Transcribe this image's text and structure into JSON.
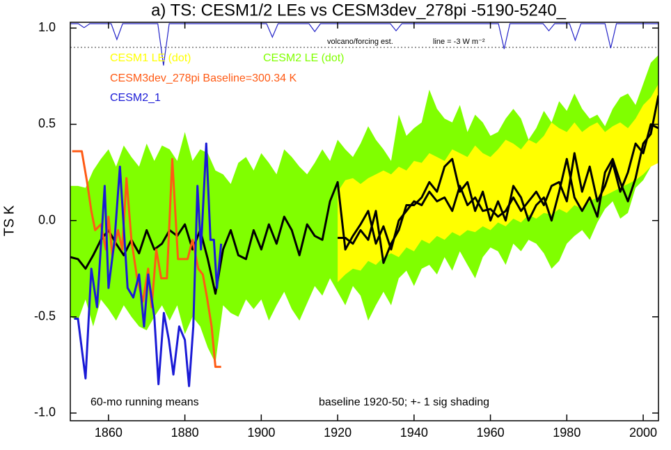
{
  "chart_data": {
    "type": "line",
    "title": "a) TS: CESM1/2 LEs vs CESM3dev_278pi -5190-5240_",
    "ylabel": "TS K",
    "xlim": [
      1850,
      2004
    ],
    "ylim": [
      -1.04,
      1.03
    ],
    "xticks": [
      1860,
      1880,
      1900,
      1920,
      1940,
      1960,
      1980,
      2000
    ],
    "yticks": [
      {
        "value": -1,
        "label": "-1.0"
      },
      -0.5,
      {
        "value": 0,
        "label": "0.0"
      },
      0.5,
      {
        "value": 1,
        "label": "1.0"
      }
    ],
    "bands": [
      {
        "name": "CESM2 LE (dot)",
        "color": "#80ff00",
        "x": [
          1850,
          1852,
          1854,
          1856,
          1858,
          1860,
          1862,
          1864,
          1866,
          1868,
          1870,
          1872,
          1874,
          1876,
          1878,
          1880,
          1882,
          1884,
          1886,
          1888,
          1890,
          1892,
          1894,
          1896,
          1898,
          1900,
          1902,
          1904,
          1906,
          1908,
          1910,
          1912,
          1914,
          1916,
          1918,
          1920,
          1922,
          1924,
          1926,
          1928,
          1930,
          1932,
          1934,
          1936,
          1938,
          1940,
          1942,
          1944,
          1946,
          1948,
          1950,
          1952,
          1954,
          1956,
          1958,
          1960,
          1962,
          1964,
          1966,
          1968,
          1970,
          1972,
          1974,
          1976,
          1978,
          1980,
          1982,
          1984,
          1986,
          1988,
          1990,
          1992,
          1994,
          1996,
          1998,
          2000,
          2002,
          2004
        ],
        "upper": [
          0.18,
          0.18,
          0.17,
          0.26,
          0.32,
          0.37,
          0.28,
          0.39,
          0.33,
          0.28,
          0.4,
          0.31,
          0.39,
          0.37,
          0.31,
          0.46,
          0.31,
          0.37,
          0.35,
          0.26,
          0.24,
          0.19,
          0.3,
          0.33,
          0.26,
          0.35,
          0.3,
          0.24,
          0.37,
          0.33,
          0.28,
          0.24,
          0.3,
          0.37,
          0.31,
          0.42,
          0.37,
          0.33,
          0.4,
          0.49,
          0.42,
          0.37,
          0.31,
          0.55,
          0.44,
          0.48,
          0.51,
          0.68,
          0.58,
          0.53,
          0.51,
          0.6,
          0.46,
          0.55,
          0.51,
          0.44,
          0.46,
          0.53,
          0.58,
          0.53,
          0.42,
          0.48,
          0.57,
          0.51,
          0.62,
          0.57,
          0.66,
          0.58,
          0.53,
          0.55,
          0.49,
          0.58,
          0.64,
          0.66,
          0.6,
          0.71,
          0.82,
          0.86
        ],
        "lower": [
          -0.5,
          -0.52,
          -0.41,
          -0.55,
          -0.41,
          -0.46,
          -0.52,
          -0.44,
          -0.5,
          -0.55,
          -0.57,
          -0.5,
          -0.44,
          -0.52,
          -0.44,
          -0.59,
          -0.5,
          -0.55,
          -0.66,
          -0.74,
          -0.44,
          -0.48,
          -0.5,
          -0.41,
          -0.46,
          -0.41,
          -0.52,
          -0.44,
          -0.37,
          -0.46,
          -0.52,
          -0.43,
          -0.34,
          -0.39,
          -0.3,
          -0.37,
          -0.44,
          -0.34,
          -0.39,
          -0.52,
          -0.44,
          -0.37,
          -0.44,
          -0.3,
          -0.26,
          -0.34,
          -0.25,
          -0.23,
          -0.28,
          -0.19,
          -0.26,
          -0.16,
          -0.23,
          -0.3,
          -0.19,
          -0.14,
          -0.16,
          -0.23,
          -0.12,
          -0.16,
          -0.1,
          -0.12,
          -0.17,
          -0.25,
          -0.21,
          -0.12,
          -0.08,
          -0.05,
          -0.1,
          -0.01,
          0.06,
          0.1,
          0.01,
          0.04,
          0.17,
          0.21,
          0.28,
          0.31
        ],
        "mean": {
          "color": "#000000",
          "values": [
            -0.19,
            -0.2,
            -0.25,
            -0.18,
            -0.1,
            -0.05,
            -0.12,
            -0.18,
            -0.1,
            -0.17,
            -0.05,
            -0.15,
            -0.12,
            -0.05,
            -0.08,
            -0.02,
            -0.15,
            -0.05,
            -0.2,
            -0.38,
            -0.15,
            -0.05,
            -0.18,
            -0.2,
            -0.05,
            -0.15,
            -0.02,
            -0.12,
            0.02,
            -0.05,
            -0.18,
            -0.02,
            -0.08,
            -0.1,
            0.1,
            0.2,
            -0.15,
            -0.08,
            -0.02,
            0.05,
            -0.12,
            -0.03,
            -0.15,
            0.0,
            0.05,
            0.1,
            0.08,
            0.15,
            0.1,
            0.12,
            0.05,
            0.18,
            0.08,
            0.12,
            0.05,
            0.06,
            0.02,
            0.05,
            0.12,
            0.05,
            0.1,
            0.15,
            0.08,
            0.18,
            0.2,
            0.1,
            0.35,
            0.15,
            0.28,
            0.1,
            0.18,
            0.3,
            0.15,
            0.25,
            0.4,
            0.35,
            0.5,
            0.48
          ]
        }
      },
      {
        "name": "CESM1 LE (dot)",
        "color": "#ffff00",
        "x": [
          1920,
          1922,
          1924,
          1926,
          1928,
          1930,
          1932,
          1934,
          1936,
          1938,
          1940,
          1942,
          1944,
          1946,
          1948,
          1950,
          1952,
          1954,
          1956,
          1958,
          1960,
          1962,
          1964,
          1966,
          1968,
          1970,
          1972,
          1974,
          1976,
          1978,
          1980,
          1982,
          1984,
          1986,
          1988,
          1990,
          1992,
          1994,
          1996,
          1998,
          2000,
          2002,
          2004
        ],
        "upper": [
          0.15,
          0.21,
          0.22,
          0.19,
          0.22,
          0.24,
          0.26,
          0.24,
          0.28,
          0.26,
          0.31,
          0.3,
          0.35,
          0.33,
          0.31,
          0.37,
          0.35,
          0.33,
          0.39,
          0.35,
          0.33,
          0.37,
          0.42,
          0.4,
          0.37,
          0.42,
          0.4,
          0.44,
          0.51,
          0.48,
          0.46,
          0.51,
          0.46,
          0.49,
          0.51,
          0.46,
          0.49,
          0.51,
          0.48,
          0.53,
          0.6,
          0.64,
          0.71
        ],
        "lower": [
          -0.32,
          -0.28,
          -0.25,
          -0.26,
          -0.21,
          -0.23,
          -0.19,
          -0.17,
          -0.19,
          -0.14,
          -0.16,
          -0.1,
          -0.12,
          -0.08,
          -0.1,
          -0.06,
          -0.08,
          -0.05,
          -0.06,
          -0.03,
          -0.05,
          -0.01,
          -0.03,
          0.01,
          -0.01,
          0.03,
          0.01,
          0.04,
          0.03,
          0.06,
          0.04,
          0.08,
          0.06,
          0.1,
          0.12,
          0.13,
          0.15,
          0.17,
          0.19,
          0.21,
          0.24,
          0.28,
          0.3
        ],
        "mean": {
          "color": "#000000",
          "values": [
            -0.09,
            -0.09,
            -0.12,
            -0.05,
            -0.1,
            0.05,
            -0.22,
            -0.12,
            -0.05,
            0.08,
            0.08,
            0.12,
            0.2,
            0.15,
            0.28,
            0.32,
            0.15,
            0.2,
            0.05,
            0.15,
            0.0,
            0.1,
            0.0,
            0.18,
            0.12,
            0.0,
            0.08,
            0.12,
            0.0,
            0.15,
            0.32,
            0.12,
            0.05,
            0.12,
            0.02,
            0.25,
            0.32,
            0.2,
            0.1,
            0.22,
            0.4,
            0.45,
            0.65
          ]
        }
      }
    ],
    "series": [
      {
        "name": "CESM3dev_278pi Baseline=300.34 K",
        "color": "#ff5a14",
        "x": [
          1850.5,
          1853,
          1854.4,
          1855.5,
          1856.5,
          1858,
          1859.3,
          1860,
          1861,
          1862.5,
          1863.6,
          1864.7,
          1866,
          1867.5,
          1869,
          1870.4,
          1871.3,
          1872.5,
          1873.8,
          1875.3,
          1876.7,
          1878.2,
          1879.3,
          1880.7,
          1882,
          1883.5,
          1884.7,
          1885.8,
          1887,
          1888,
          1889.5
        ],
        "values": [
          0.36,
          0.36,
          0.2,
          0.05,
          -0.05,
          -0.02,
          -0.15,
          0.02,
          -0.18,
          -0.05,
          -0.15,
          0.22,
          -0.1,
          -0.3,
          -0.42,
          -0.25,
          -0.45,
          -0.15,
          -0.3,
          -0.3,
          0.32,
          -0.2,
          -0.2,
          -0.2,
          -0.1,
          -0.25,
          -0.28,
          -0.4,
          -0.55,
          -0.76,
          -0.76
        ]
      },
      {
        "name": "CESM2_1",
        "color": "#1a1ad6",
        "x": [
          1851,
          1852,
          1854,
          1855.5,
          1857,
          1859,
          1860,
          1861.6,
          1863,
          1865,
          1866.5,
          1868,
          1869.3,
          1870.4,
          1872,
          1873.1,
          1874.5,
          1875.8,
          1877,
          1878.5,
          1880,
          1881.1,
          1882.2,
          1883.3,
          1884.2,
          1885.6,
          1886.7,
          1887.6,
          1888.4,
          1889.5
        ],
        "values": [
          -0.51,
          -0.51,
          -0.82,
          -0.25,
          -0.45,
          0.18,
          -0.35,
          -0.1,
          0.28,
          -0.35,
          -0.4,
          -0.28,
          -0.55,
          -0.28,
          -0.5,
          -0.85,
          -0.48,
          -0.62,
          -0.8,
          -0.55,
          -0.62,
          -0.86,
          -0.55,
          0.18,
          -0.15,
          0.4,
          -0.1,
          -0.1,
          -0.35,
          -0.12
        ]
      }
    ],
    "forcing": {
      "label": "volcano/forcing est.",
      "ref": {
        "value": -3,
        "label": "line = -3 W m⁻²"
      },
      "color": "#2323c8",
      "ylim": [
        -6,
        0
      ],
      "x": [
        1850,
        1852.1,
        1853.6,
        1855.1,
        1860.7,
        1862.2,
        1863.7,
        1872.9,
        1874.4,
        1875.9,
        1901.4,
        1902.9,
        1904.4,
        1912.5,
        1914,
        1915.5,
        1933.8,
        1935.3,
        1936.8,
        1962.1,
        1963.6,
        1965.1,
        1973.8,
        1975.3,
        1976.8,
        1980.7,
        1982.2,
        1983.7,
        1990,
        1991.5,
        1993,
        2004
      ],
      "values": [
        0,
        0,
        -0.5,
        0,
        0,
        -2.0,
        0,
        0,
        -5.3,
        0,
        0,
        -1.7,
        0,
        0,
        -1.0,
        0,
        0,
        -0.9,
        0,
        0,
        -3.2,
        0,
        0,
        -0.9,
        0,
        0,
        -2.1,
        0,
        0,
        -3.1,
        0,
        0
      ]
    },
    "annotations": [
      "60-mo running means",
      "baseline 1920-50; +- 1 sig shading"
    ]
  }
}
